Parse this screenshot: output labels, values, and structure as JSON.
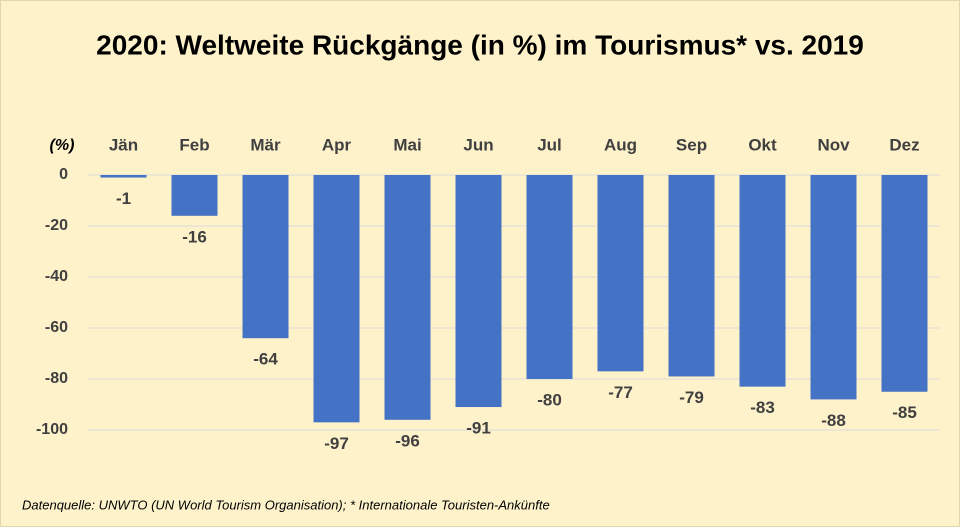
{
  "chart_data": {
    "type": "bar",
    "title": "2020: Weltweite Rückgänge (in %) im Tourismus* vs. 2019",
    "y_axis_label": "(%)",
    "source": "Datenquelle: UNWTO (UN World Tourism Organisation); * Internationale Touristen-Ankünfte",
    "categories": [
      "Jän",
      "Feb",
      "Mär",
      "Apr",
      "Mai",
      "Jun",
      "Jul",
      "Aug",
      "Sep",
      "Okt",
      "Nov",
      "Dez"
    ],
    "values": [
      -1,
      -16,
      -64,
      -97,
      -96,
      -91,
      -80,
      -77,
      -79,
      -83,
      -88,
      -85
    ],
    "color": "#4472c4",
    "ylim": [
      -100,
      0
    ],
    "yticks": [
      0,
      -20,
      -40,
      -60,
      -80,
      -100
    ],
    "grid": true
  }
}
